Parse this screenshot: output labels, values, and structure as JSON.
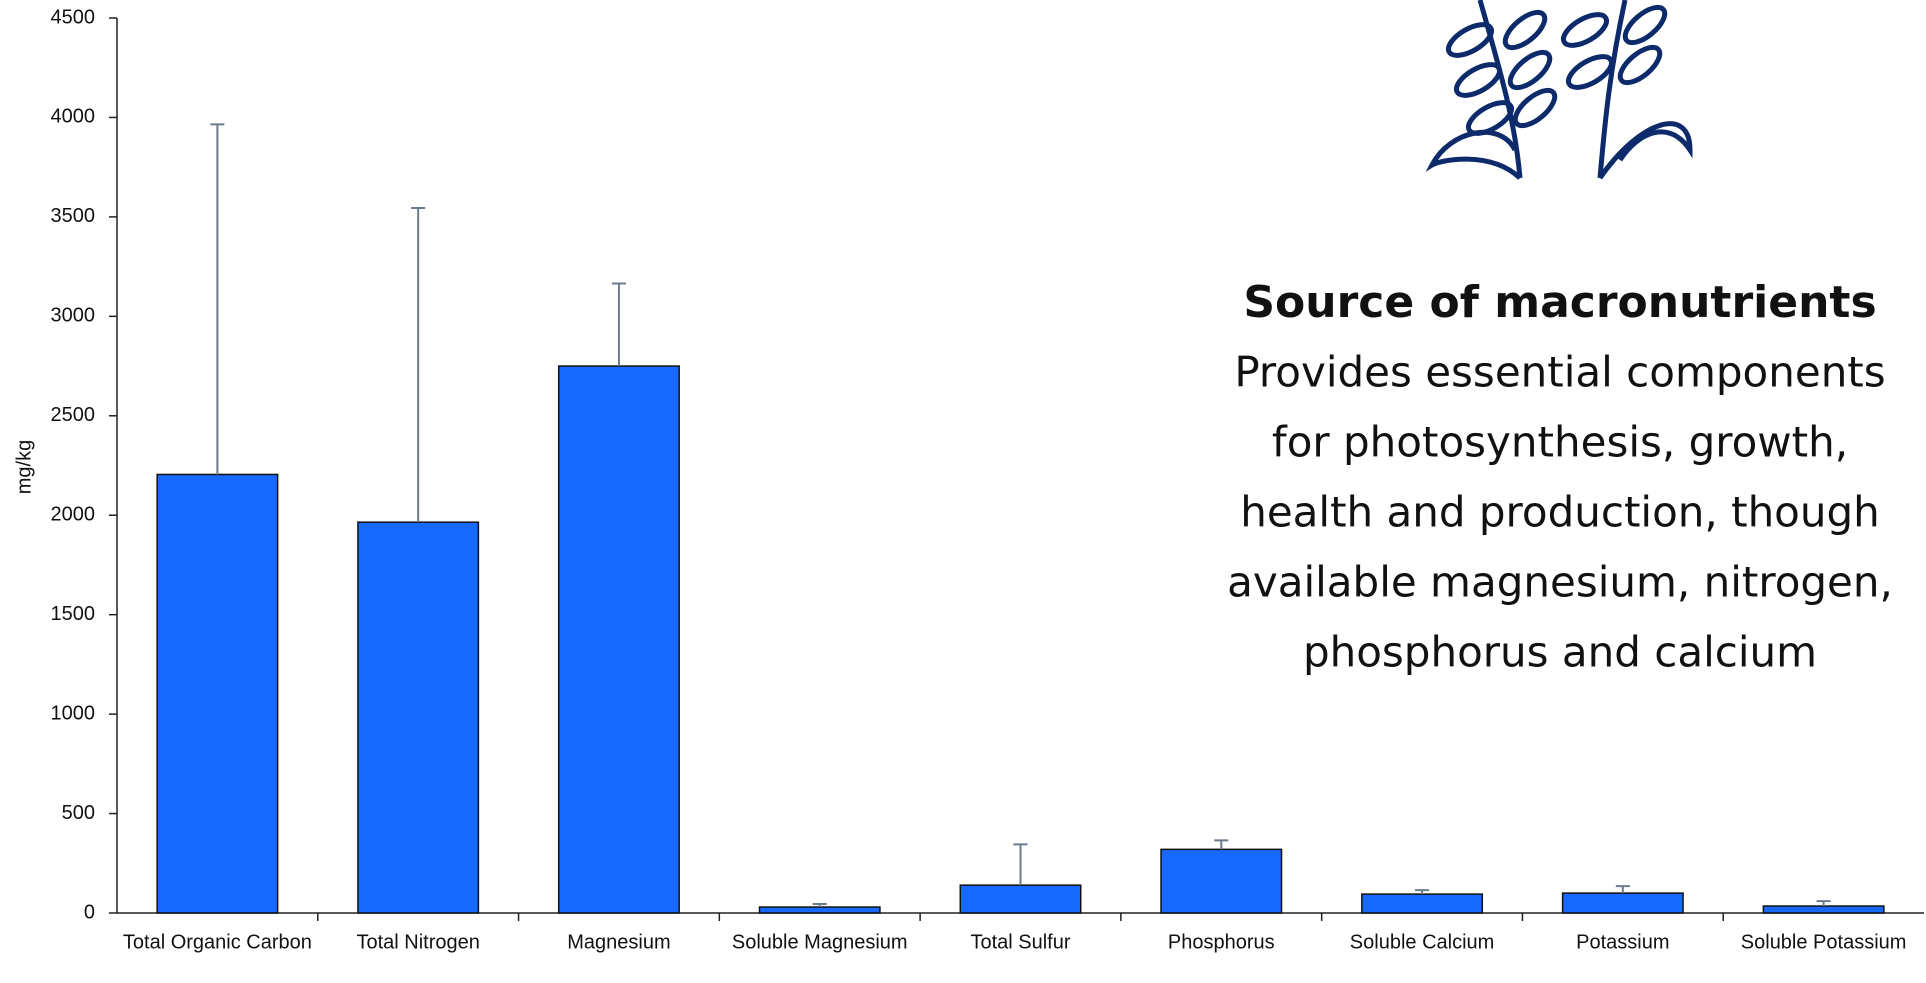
{
  "chart_data": {
    "type": "bar",
    "y_label": "mg/kg",
    "categories": [
      "Total Organic Carbon",
      "Total Nitrogen",
      "Magnesium",
      "Soluble Magnesium",
      "Total Sulfur",
      "Phosphorus",
      "Soluble Calcium",
      "Potassium",
      "Soluble Potassium"
    ],
    "values": [
      2205,
      1965,
      2750,
      30,
      140,
      320,
      95,
      100,
      35
    ],
    "errors": [
      1760,
      1580,
      415,
      15,
      205,
      45,
      20,
      35,
      25
    ],
    "color": "#1769ff",
    "ylim": [
      0,
      4500
    ],
    "yticks": [
      0,
      500,
      1000,
      1500,
      2000,
      2500,
      3000,
      3500,
      4000,
      4500
    ],
    "grid": false
  },
  "panel": {
    "title": "Source of macronutrients",
    "lines": [
      "Provides essential components",
      "for photosynthesis, growth,",
      "health and production, though",
      "available magnesium, nitrogen,",
      "phosphorus and calcium"
    ]
  }
}
